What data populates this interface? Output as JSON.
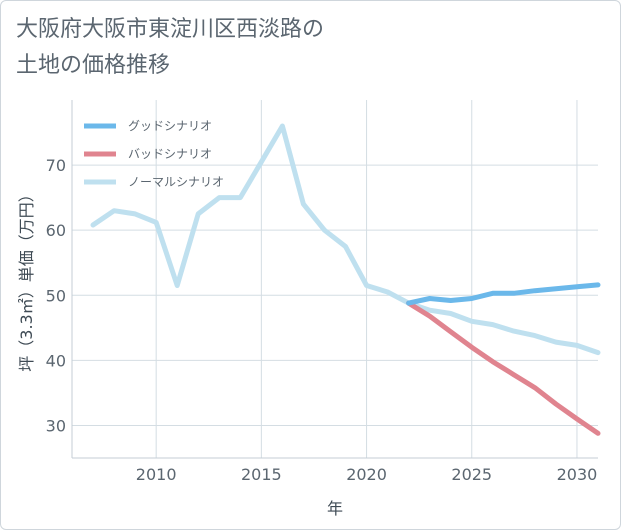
{
  "title_line1": "大阪府大阪市東淀川区西淡路の",
  "title_line2": "土地の価格推移",
  "chart_data": {
    "type": "line",
    "xlabel": "年",
    "ylabel": "坪（3.3㎡）単価（万円）",
    "xlim": [
      2006,
      2031
    ],
    "ylim": [
      25,
      80
    ],
    "xticks": [
      2010,
      2015,
      2020,
      2025,
      2030
    ],
    "yticks": [
      30,
      40,
      50,
      60,
      70
    ],
    "grid": true,
    "legend_position": "top-left",
    "series": [
      {
        "name": "グッドシナリオ",
        "color": "#6bb8ea",
        "x": [
          2022,
          2023,
          2024,
          2025,
          2026,
          2027,
          2028,
          2029,
          2030,
          2031
        ],
        "y": [
          48.8,
          49.5,
          49.2,
          49.5,
          50.3,
          50.3,
          50.7,
          51.0,
          51.3,
          51.6
        ]
      },
      {
        "name": "バッドシナリオ",
        "color": "#e0848f",
        "x": [
          2022,
          2023,
          2024,
          2025,
          2026,
          2027,
          2028,
          2029,
          2030,
          2031
        ],
        "y": [
          48.8,
          46.8,
          44.4,
          42.0,
          39.8,
          37.8,
          35.8,
          33.3,
          31.0,
          28.8
        ]
      },
      {
        "name": "ノーマルシナリオ",
        "color": "#bfe0ef",
        "x": [
          2007,
          2008,
          2009,
          2010,
          2011,
          2012,
          2013,
          2014,
          2015,
          2016,
          2017,
          2018,
          2019,
          2020,
          2021,
          2022,
          2023,
          2024,
          2025,
          2026,
          2027,
          2028,
          2029,
          2030,
          2031
        ],
        "y": [
          60.8,
          63.0,
          62.5,
          61.2,
          51.5,
          62.5,
          65.0,
          65.0,
          70.5,
          76.0,
          64.0,
          60.0,
          57.5,
          51.5,
          50.5,
          48.8,
          47.7,
          47.2,
          46.0,
          45.5,
          44.5,
          43.8,
          42.8,
          42.3,
          41.2
        ]
      }
    ]
  }
}
